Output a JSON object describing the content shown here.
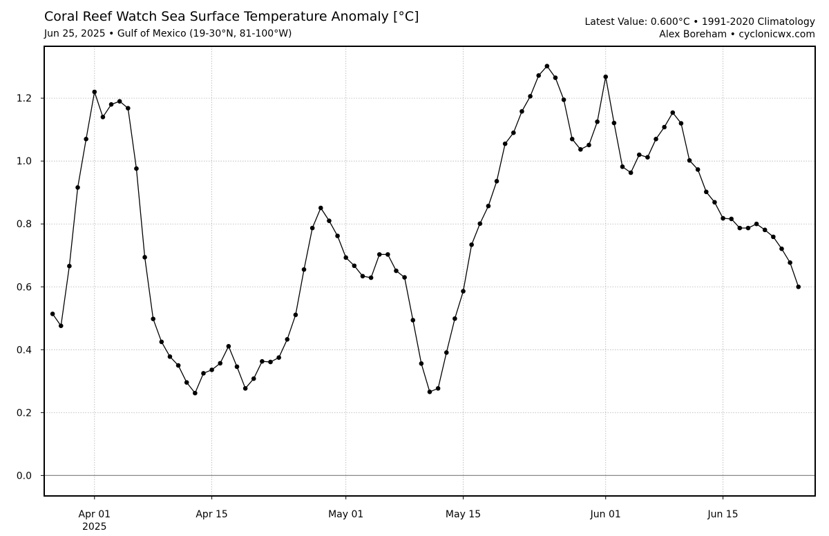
{
  "header": {
    "title": "Coral Reef Watch Sea Surface Temperature Anomaly [°C]",
    "subtitle": "Jun 25, 2025 • Gulf of Mexico (19-30°N, 81-100°W)",
    "right_line1": "Latest Value: 0.600°C • 1991-2020 Climatology",
    "right_line2": "Alex Boreham • cyclonicwx.com"
  },
  "chart_data": {
    "type": "line",
    "title": "Coral Reef Watch Sea Surface Temperature Anomaly [°C]",
    "xlabel": "",
    "ylabel": "",
    "x_start": "2025-03-27",
    "x_end": "2025-06-25",
    "xlim": [
      "2025-03-26",
      "2025-06-26"
    ],
    "ylim": [
      -0.065,
      1.365
    ],
    "grid": true,
    "zero_line": true,
    "colors": {
      "line": "#000000",
      "zero": "#888888",
      "grid": "#b0b0b0"
    },
    "x_ticks": [
      {
        "date": "2025-04-01",
        "label": "Apr 01",
        "label2": "2025"
      },
      {
        "date": "2025-04-15",
        "label": "Apr 15",
        "label2": ""
      },
      {
        "date": "2025-05-01",
        "label": "May 01",
        "label2": ""
      },
      {
        "date": "2025-05-15",
        "label": "May 15",
        "label2": ""
      },
      {
        "date": "2025-06-01",
        "label": "Jun 01",
        "label2": ""
      },
      {
        "date": "2025-06-15",
        "label": "Jun 15",
        "label2": ""
      }
    ],
    "y_ticks": [
      "0.0",
      "0.2",
      "0.4",
      "0.6",
      "0.8",
      "1.0",
      "1.2"
    ],
    "values": [
      0.514,
      0.476,
      0.666,
      0.916,
      1.07,
      1.22,
      1.14,
      1.18,
      1.19,
      1.168,
      0.976,
      0.694,
      0.498,
      0.425,
      0.378,
      0.35,
      0.296,
      0.262,
      0.325,
      0.336,
      0.357,
      0.411,
      0.346,
      0.277,
      0.308,
      0.363,
      0.361,
      0.375,
      0.433,
      0.511,
      0.655,
      0.787,
      0.851,
      0.81,
      0.762,
      0.693,
      0.667,
      0.634,
      0.629,
      0.703,
      0.703,
      0.651,
      0.63,
      0.494,
      0.356,
      0.266,
      0.277,
      0.391,
      0.499,
      0.586,
      0.734,
      0.801,
      0.857,
      0.936,
      1.055,
      1.09,
      1.158,
      1.206,
      1.272,
      1.302,
      1.265,
      1.195,
      1.07,
      1.037,
      1.051,
      1.125,
      1.268,
      1.121,
      0.982,
      0.963,
      1.02,
      1.012,
      1.07,
      1.108,
      1.154,
      1.12,
      1.002,
      0.973,
      0.902,
      0.869,
      0.818,
      0.816,
      0.787,
      0.787,
      0.8,
      0.781,
      0.759,
      0.721,
      0.677,
      0.6
    ]
  }
}
